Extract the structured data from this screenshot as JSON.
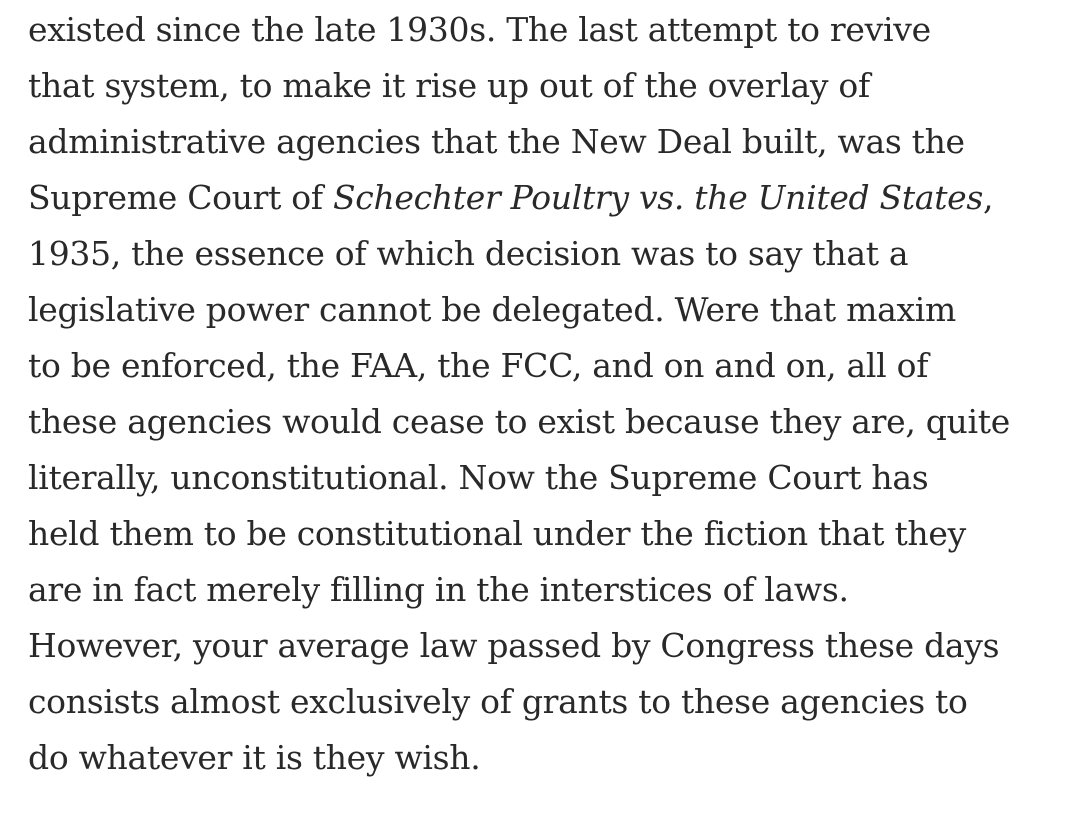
{
  "article": {
    "lines": [
      {
        "text": "existed since the late 1930s. The last attempt to revive"
      },
      {
        "text": "that system, to make it rise up out of the overlay of"
      },
      {
        "text": "administrative agencies that the New Deal built, was the"
      },
      {
        "pre": "Supreme Court of ",
        "ital": "Schechter Poultry vs. the United States",
        "post": ","
      },
      {
        "text": "1935, the essence of which decision was to say that a"
      },
      {
        "text": "legislative power cannot be delegated. Were that maxim"
      },
      {
        "text": "to be enforced, the FAA, the FCC, and on and on, all of"
      },
      {
        "text": "these agencies would cease to exist because they are, quite"
      },
      {
        "text": "literally, unconstitutional. Now the Supreme Court has"
      },
      {
        "text": "held them to be constitutional under the fiction that they"
      },
      {
        "text": "are in fact merely filling in the interstices of laws."
      },
      {
        "text": "However, your average law passed by Congress these days"
      },
      {
        "text": "consists almost exclusively of grants to these agencies to"
      },
      {
        "text": "do whatever it is they wish."
      }
    ]
  }
}
